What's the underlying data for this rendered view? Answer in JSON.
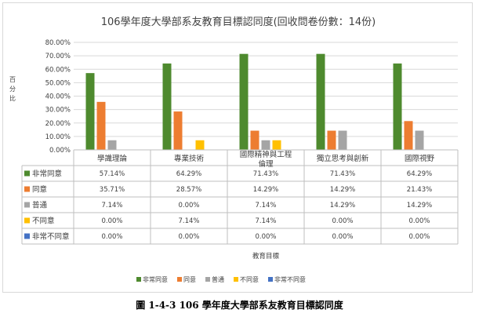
{
  "colors": {
    "series": [
      "#4e8a2e",
      "#ed7d31",
      "#a5a5a5",
      "#ffc000",
      "#4472c4"
    ],
    "grid": "#d9d9d9",
    "text": "#404040",
    "table_border": "#bfbfbf"
  },
  "caption": "圖 1-4-3 106 學年度大學部系友教育目標認同度",
  "chart_data": {
    "type": "bar",
    "title": "106學年度大學部系友教育目標認同度(回收問卷份數：14份)",
    "ylabel": "百分比",
    "xlabel": "教育目標",
    "ylim": [
      0,
      80
    ],
    "yticks": [
      "0.00%",
      "10.00%",
      "20.00%",
      "30.00%",
      "40.00%",
      "50.00%",
      "60.00%",
      "70.00%",
      "80.00%"
    ],
    "grid": true,
    "legend_position": "bottom",
    "categories": [
      "學識理論",
      "專業技術",
      "國際精神與工程倫理",
      "獨立思考與創新",
      "國際視野"
    ],
    "series": [
      {
        "name": "非常同意",
        "values": [
          57.14,
          64.29,
          71.43,
          71.43,
          64.29
        ],
        "labels": [
          "57.14%",
          "64.29%",
          "71.43%",
          "71.43%",
          "64.29%"
        ]
      },
      {
        "name": "同意",
        "values": [
          35.71,
          28.57,
          14.29,
          14.29,
          21.43
        ],
        "labels": [
          "35.71%",
          "28.57%",
          "14.29%",
          "14.29%",
          "21.43%"
        ]
      },
      {
        "name": "普通",
        "values": [
          7.14,
          0,
          7.14,
          14.29,
          14.29
        ],
        "labels": [
          "7.14%",
          "0.00%",
          "7.14%",
          "14.29%",
          "14.29%"
        ]
      },
      {
        "name": "不同意",
        "values": [
          0,
          7.14,
          7.14,
          0,
          0
        ],
        "labels": [
          "0.00%",
          "7.14%",
          "7.14%",
          "0.00%",
          "0.00%"
        ]
      },
      {
        "name": "非常不同意",
        "values": [
          0,
          0,
          0,
          0,
          0
        ],
        "labels": [
          "0.00%",
          "0.00%",
          "0.00%",
          "0.00%",
          "0.00%"
        ]
      }
    ]
  }
}
